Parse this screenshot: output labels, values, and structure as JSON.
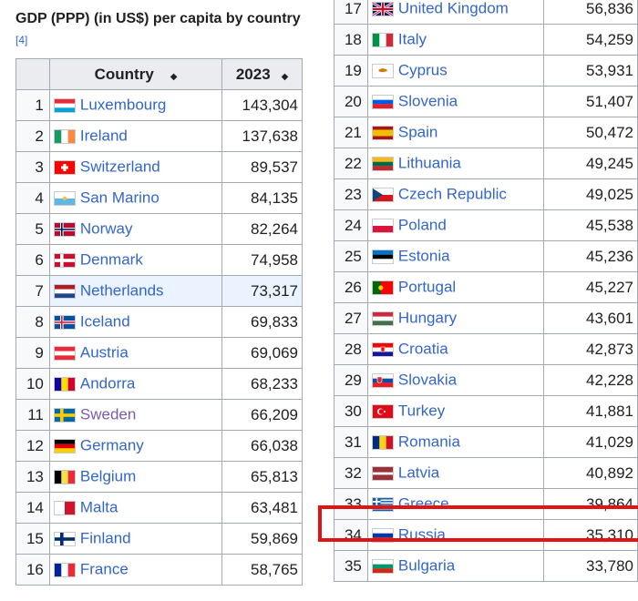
{
  "title": "GDP (PPP) (in US$) per capita by country",
  "ref": "[4]",
  "headers": {
    "country": "Country",
    "year": "2023",
    "sort_icon": "sort-arrows-icon"
  },
  "rows": [
    {
      "rank": "1",
      "country": "Luxembourg",
      "gdp": "143,304",
      "flag": "luxembourg"
    },
    {
      "rank": "2",
      "country": "Ireland",
      "gdp": "137,638",
      "flag": "ireland"
    },
    {
      "rank": "3",
      "country": "Switzerland",
      "gdp": "89,537",
      "flag": "switzerland"
    },
    {
      "rank": "4",
      "country": "San Marino",
      "gdp": "84,135",
      "flag": "san-marino"
    },
    {
      "rank": "5",
      "country": "Norway",
      "gdp": "82,264",
      "flag": "norway"
    },
    {
      "rank": "6",
      "country": "Denmark",
      "gdp": "74,958",
      "flag": "denmark"
    },
    {
      "rank": "7",
      "country": "Netherlands",
      "gdp": "73,317",
      "flag": "netherlands",
      "highlight": true
    },
    {
      "rank": "8",
      "country": "Iceland",
      "gdp": "69,833",
      "flag": "iceland"
    },
    {
      "rank": "9",
      "country": "Austria",
      "gdp": "69,069",
      "flag": "austria"
    },
    {
      "rank": "10",
      "country": "Andorra",
      "gdp": "68,233",
      "flag": "andorra"
    },
    {
      "rank": "11",
      "country": "Sweden",
      "gdp": "66,209",
      "flag": "sweden",
      "visited": true
    },
    {
      "rank": "12",
      "country": "Germany",
      "gdp": "66,038",
      "flag": "germany"
    },
    {
      "rank": "13",
      "country": "Belgium",
      "gdp": "65,813",
      "flag": "belgium"
    },
    {
      "rank": "14",
      "country": "Malta",
      "gdp": "63,481",
      "flag": "malta"
    },
    {
      "rank": "15",
      "country": "Finland",
      "gdp": "59,869",
      "flag": "finland"
    },
    {
      "rank": "16",
      "country": "France",
      "gdp": "58,765",
      "flag": "france"
    },
    {
      "rank": "17",
      "country": "United Kingdom",
      "gdp": "56,836",
      "flag": "united-kingdom"
    },
    {
      "rank": "18",
      "country": "Italy",
      "gdp": "54,259",
      "flag": "italy"
    },
    {
      "rank": "19",
      "country": "Cyprus",
      "gdp": "53,931",
      "flag": "cyprus"
    },
    {
      "rank": "20",
      "country": "Slovenia",
      "gdp": "51,407",
      "flag": "slovenia"
    },
    {
      "rank": "21",
      "country": "Spain",
      "gdp": "50,472",
      "flag": "spain"
    },
    {
      "rank": "22",
      "country": "Lithuania",
      "gdp": "49,245",
      "flag": "lithuania"
    },
    {
      "rank": "23",
      "country": "Czech Republic",
      "gdp": "49,025",
      "flag": "czech-republic"
    },
    {
      "rank": "24",
      "country": "Poland",
      "gdp": "45,538",
      "flag": "poland"
    },
    {
      "rank": "25",
      "country": "Estonia",
      "gdp": "45,236",
      "flag": "estonia"
    },
    {
      "rank": "26",
      "country": "Portugal",
      "gdp": "45,227",
      "flag": "portugal"
    },
    {
      "rank": "27",
      "country": "Hungary",
      "gdp": "43,601",
      "flag": "hungary"
    },
    {
      "rank": "28",
      "country": "Croatia",
      "gdp": "42,873",
      "flag": "croatia"
    },
    {
      "rank": "29",
      "country": "Slovakia",
      "gdp": "42,228",
      "flag": "slovakia"
    },
    {
      "rank": "30",
      "country": "Turkey",
      "gdp": "41,881",
      "flag": "turkey"
    },
    {
      "rank": "31",
      "country": "Romania",
      "gdp": "41,029",
      "flag": "romania"
    },
    {
      "rank": "32",
      "country": "Latvia",
      "gdp": "40,892",
      "flag": "latvia"
    },
    {
      "rank": "33",
      "country": "Greece",
      "gdp": "39,864",
      "flag": "greece",
      "annotated": true
    },
    {
      "rank": "34",
      "country": "Russia",
      "gdp": "35,310",
      "flag": "russia"
    },
    {
      "rank": "35",
      "country": "Bulgaria",
      "gdp": "33,780",
      "flag": "bulgaria"
    }
  ],
  "colors": {
    "link": "#3366cc",
    "visited": "#795cb2",
    "annotation": "#e01414",
    "header_bg": "#eaecf0",
    "row_highlight": "#eaf3ff"
  }
}
